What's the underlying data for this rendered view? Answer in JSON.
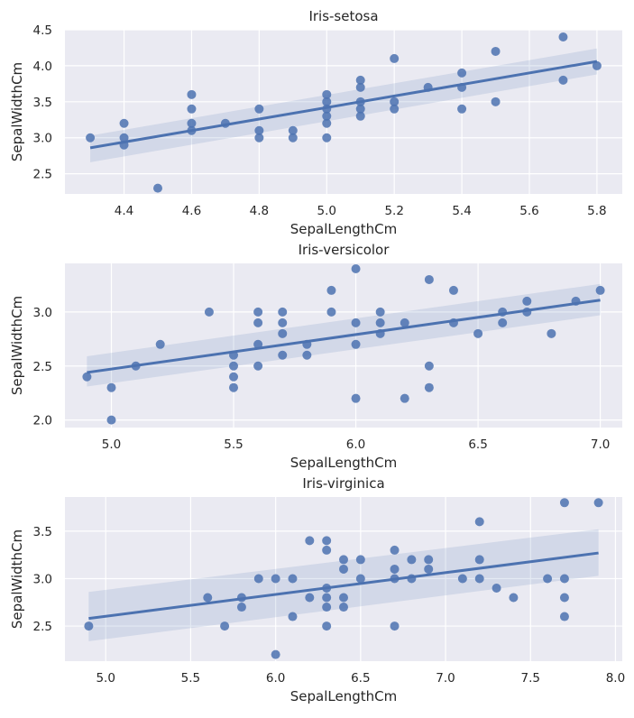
{
  "chart_data": [
    {
      "type": "scatter",
      "title": "Iris-setosa",
      "xlabel": "SepalLengthCm",
      "ylabel": "SepalWidthCm",
      "xlim": [
        4.225,
        5.875
      ],
      "ylim": [
        2.22,
        4.5
      ],
      "xticks": [
        "4.4",
        "4.6",
        "4.8",
        "5.0",
        "5.2",
        "5.4",
        "5.6",
        "5.8"
      ],
      "xtick_values": [
        4.4,
        4.6,
        4.8,
        5.0,
        5.2,
        5.4,
        5.6,
        5.8
      ],
      "yticks": [
        "2.5",
        "3.0",
        "3.5",
        "4.0",
        "4.5"
      ],
      "ytick_values": [
        2.5,
        3.0,
        3.5,
        4.0,
        4.5
      ],
      "grid": true,
      "points": [
        [
          4.3,
          3.0
        ],
        [
          4.4,
          3.2
        ],
        [
          4.4,
          3.0
        ],
        [
          4.4,
          2.9
        ],
        [
          4.5,
          2.3
        ],
        [
          4.6,
          3.6
        ],
        [
          4.6,
          3.4
        ],
        [
          4.6,
          3.2
        ],
        [
          4.6,
          3.1
        ],
        [
          4.7,
          3.2
        ],
        [
          4.8,
          3.4
        ],
        [
          4.8,
          3.1
        ],
        [
          4.8,
          3.0
        ],
        [
          4.9,
          3.1
        ],
        [
          4.9,
          3.0
        ],
        [
          5.0,
          3.6
        ],
        [
          5.0,
          3.5
        ],
        [
          5.0,
          3.4
        ],
        [
          5.0,
          3.3
        ],
        [
          5.0,
          3.2
        ],
        [
          5.0,
          3.0
        ],
        [
          5.1,
          3.8
        ],
        [
          5.1,
          3.7
        ],
        [
          5.1,
          3.5
        ],
        [
          5.1,
          3.4
        ],
        [
          5.1,
          3.3
        ],
        [
          5.2,
          4.1
        ],
        [
          5.2,
          3.5
        ],
        [
          5.2,
          3.4
        ],
        [
          5.3,
          3.7
        ],
        [
          5.4,
          3.9
        ],
        [
          5.4,
          3.7
        ],
        [
          5.4,
          3.4
        ],
        [
          5.5,
          4.2
        ],
        [
          5.5,
          3.5
        ],
        [
          5.7,
          4.4
        ],
        [
          5.7,
          3.8
        ],
        [
          5.8,
          4.0
        ]
      ],
      "regression": {
        "x": [
          4.3,
          5.8
        ],
        "y": [
          2.86,
          4.06
        ],
        "ci_low": [
          2.66,
          3.88
        ],
        "ci_high": [
          3.03,
          4.24
        ]
      }
    },
    {
      "type": "scatter",
      "title": "Iris-versicolor",
      "xlabel": "SepalLengthCm",
      "ylabel": "SepalWidthCm",
      "xlim": [
        4.81,
        7.09
      ],
      "ylim": [
        1.93,
        3.45
      ],
      "xticks": [
        "5.0",
        "5.5",
        "6.0",
        "6.5",
        "7.0"
      ],
      "xtick_values": [
        5.0,
        5.5,
        6.0,
        6.5,
        7.0
      ],
      "yticks": [
        "2.0",
        "2.5",
        "3.0"
      ],
      "ytick_values": [
        2.0,
        2.5,
        3.0
      ],
      "grid": true,
      "points": [
        [
          4.9,
          2.4
        ],
        [
          5.0,
          2.3
        ],
        [
          5.0,
          2.0
        ],
        [
          5.1,
          2.5
        ],
        [
          5.2,
          2.7
        ],
        [
          5.4,
          3.0
        ],
        [
          5.5,
          2.6
        ],
        [
          5.5,
          2.5
        ],
        [
          5.5,
          2.4
        ],
        [
          5.5,
          2.3
        ],
        [
          5.6,
          3.0
        ],
        [
          5.6,
          2.9
        ],
        [
          5.6,
          2.7
        ],
        [
          5.6,
          2.5
        ],
        [
          5.7,
          3.0
        ],
        [
          5.7,
          2.9
        ],
        [
          5.7,
          2.8
        ],
        [
          5.7,
          2.6
        ],
        [
          5.8,
          2.7
        ],
        [
          5.8,
          2.6
        ],
        [
          5.9,
          3.2
        ],
        [
          5.9,
          3.0
        ],
        [
          6.0,
          3.4
        ],
        [
          6.0,
          2.9
        ],
        [
          6.0,
          2.7
        ],
        [
          6.0,
          2.2
        ],
        [
          6.1,
          3.0
        ],
        [
          6.1,
          2.9
        ],
        [
          6.1,
          2.8
        ],
        [
          6.2,
          2.9
        ],
        [
          6.2,
          2.2
        ],
        [
          6.3,
          3.3
        ],
        [
          6.3,
          2.5
        ],
        [
          6.3,
          2.3
        ],
        [
          6.4,
          3.2
        ],
        [
          6.4,
          2.9
        ],
        [
          6.5,
          2.8
        ],
        [
          6.6,
          3.0
        ],
        [
          6.6,
          2.9
        ],
        [
          6.7,
          3.1
        ],
        [
          6.7,
          3.0
        ],
        [
          6.8,
          2.8
        ],
        [
          6.9,
          3.1
        ],
        [
          7.0,
          3.2
        ]
      ],
      "regression": {
        "x": [
          4.9,
          7.0
        ],
        "y": [
          2.44,
          3.11
        ],
        "ci_low": [
          2.31,
          2.97
        ],
        "ci_high": [
          2.59,
          3.26
        ]
      }
    },
    {
      "type": "scatter",
      "title": "Iris-virginica",
      "xlabel": "SepalLengthCm",
      "ylabel": "SepalWidthCm",
      "xlim": [
        4.76,
        8.04
      ],
      "ylim": [
        2.13,
        3.86
      ],
      "xticks": [
        "5.0",
        "5.5",
        "6.0",
        "6.5",
        "7.0",
        "7.5",
        "8.0"
      ],
      "xtick_values": [
        5.0,
        5.5,
        6.0,
        6.5,
        7.0,
        7.5,
        8.0
      ],
      "yticks": [
        "2.5",
        "3.0",
        "3.5"
      ],
      "ytick_values": [
        2.5,
        3.0,
        3.5
      ],
      "grid": true,
      "points": [
        [
          4.9,
          2.5
        ],
        [
          5.6,
          2.8
        ],
        [
          5.7,
          2.5
        ],
        [
          5.8,
          2.8
        ],
        [
          5.8,
          2.7
        ],
        [
          5.9,
          3.0
        ],
        [
          6.0,
          3.0
        ],
        [
          6.0,
          2.2
        ],
        [
          6.1,
          3.0
        ],
        [
          6.1,
          2.6
        ],
        [
          6.2,
          3.4
        ],
        [
          6.2,
          2.8
        ],
        [
          6.3,
          3.4
        ],
        [
          6.3,
          3.3
        ],
        [
          6.3,
          2.9
        ],
        [
          6.3,
          2.8
        ],
        [
          6.3,
          2.7
        ],
        [
          6.3,
          2.5
        ],
        [
          6.4,
          3.2
        ],
        [
          6.4,
          3.1
        ],
        [
          6.4,
          2.8
        ],
        [
          6.4,
          2.7
        ],
        [
          6.5,
          3.2
        ],
        [
          6.5,
          3.0
        ],
        [
          6.7,
          3.3
        ],
        [
          6.7,
          3.1
        ],
        [
          6.7,
          3.0
        ],
        [
          6.7,
          2.5
        ],
        [
          6.8,
          3.2
        ],
        [
          6.8,
          3.0
        ],
        [
          6.9,
          3.2
        ],
        [
          6.9,
          3.1
        ],
        [
          7.1,
          3.0
        ],
        [
          7.2,
          3.6
        ],
        [
          7.2,
          3.2
        ],
        [
          7.2,
          3.0
        ],
        [
          7.3,
          2.9
        ],
        [
          7.4,
          2.8
        ],
        [
          7.6,
          3.0
        ],
        [
          7.7,
          3.8
        ],
        [
          7.7,
          3.0
        ],
        [
          7.7,
          2.8
        ],
        [
          7.7,
          2.6
        ],
        [
          7.9,
          3.8
        ]
      ],
      "regression": {
        "x": [
          4.9,
          7.9
        ],
        "y": [
          2.58,
          3.27
        ],
        "ci_low": [
          2.34,
          3.03
        ],
        "ci_high": [
          2.86,
          3.52
        ]
      }
    }
  ],
  "colors": {
    "point": "#4c72b0",
    "line": "#4c72b0",
    "band": "#4c72b0",
    "plot_bg": "#eaeaf2",
    "grid": "#ffffff",
    "text": "#262626"
  }
}
